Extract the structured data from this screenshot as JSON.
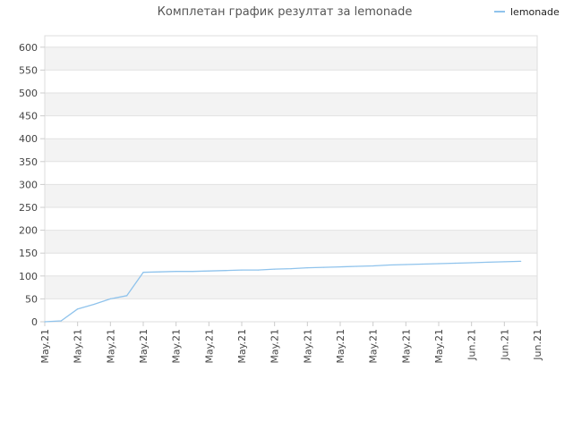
{
  "chart_data": {
    "type": "line",
    "title": "Комплетан график резултат за lemonade",
    "xlabel": "",
    "ylabel": "",
    "ylim": [
      0,
      625
    ],
    "y_ticks": [
      0,
      50,
      100,
      150,
      200,
      250,
      300,
      350,
      400,
      450,
      500,
      550,
      600
    ],
    "x_tick_labels": [
      "May.21",
      "May.21",
      "May.21",
      "May.21",
      "May.21",
      "May.21",
      "May.21",
      "May.21",
      "May.21",
      "May.21",
      "May.21",
      "May.21",
      "May.21",
      "Jun.21",
      "Jun.21",
      "Jun.21"
    ],
    "grid": true,
    "legend": {
      "position": "top-right"
    },
    "series": [
      {
        "name": "lemonade",
        "color": "#8fc3ec",
        "x": [
          0,
          0.5,
          1,
          1.5,
          2,
          2.5,
          3,
          3.5,
          4,
          4.5,
          5,
          5.5,
          6,
          6.5,
          7,
          7.5,
          8,
          8.5,
          9,
          9.5,
          10,
          10.5,
          11,
          11.5,
          12,
          12.5,
          13,
          13.5,
          14,
          14.5
        ],
        "values": [
          0,
          2,
          28,
          38,
          50,
          57,
          108,
          109,
          110,
          110,
          111,
          112,
          113,
          113,
          115,
          116,
          118,
          119,
          120,
          121,
          122,
          124,
          125,
          126,
          127,
          128,
          129,
          130,
          131,
          132
        ]
      }
    ]
  }
}
